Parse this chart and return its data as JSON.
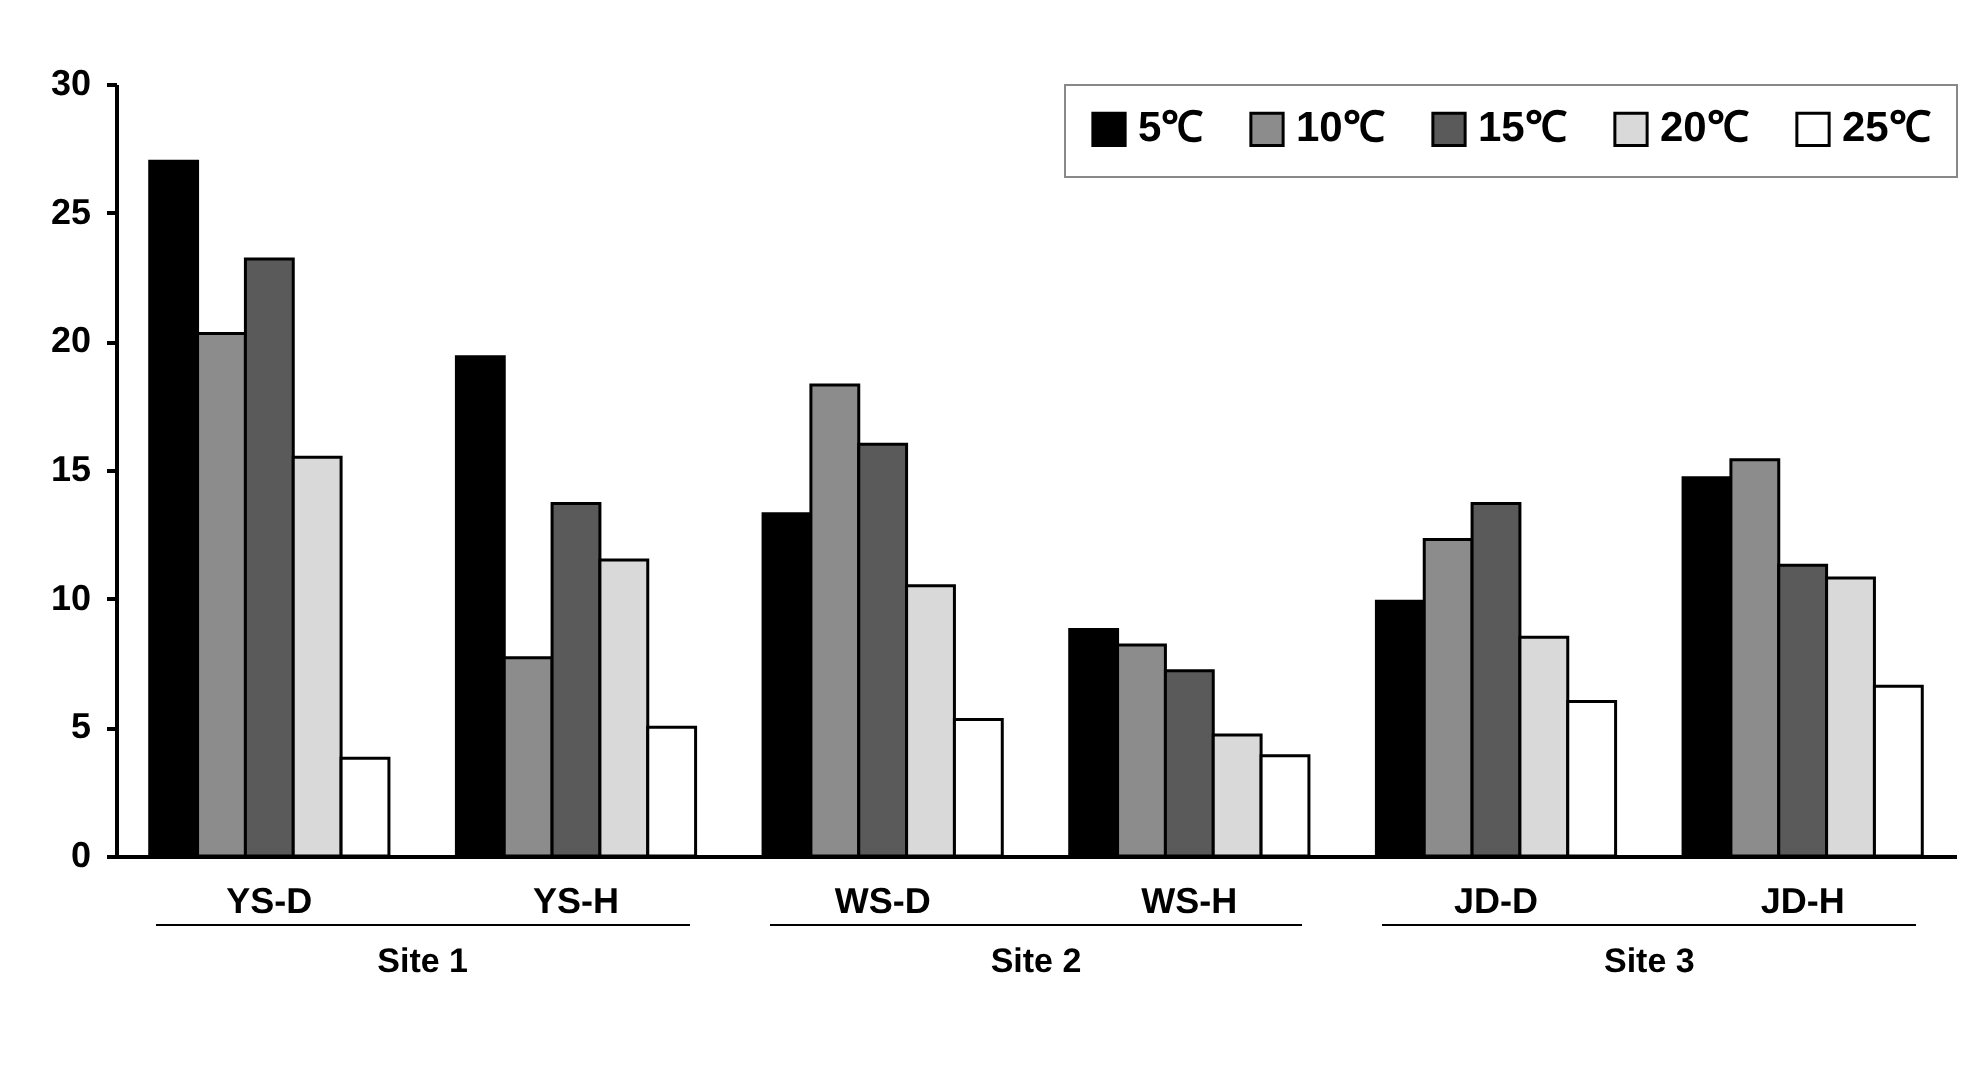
{
  "chart_data": {
    "type": "bar",
    "categories": [
      "YS-D",
      "YS-H",
      "WS-D",
      "WS-H",
      "JD-D",
      "JD-H"
    ],
    "series": [
      {
        "name": "5℃",
        "color": "#000000",
        "values": [
          27,
          19.4,
          13.3,
          8.8,
          9.9,
          14.7
        ]
      },
      {
        "name": "10℃",
        "color": "#8c8c8c",
        "values": [
          20.3,
          7.7,
          18.3,
          8.2,
          12.3,
          15.4
        ]
      },
      {
        "name": "15℃",
        "color": "#5a5a5a",
        "values": [
          23.2,
          13.7,
          16.0,
          7.2,
          13.7,
          11.3
        ]
      },
      {
        "name": "20℃",
        "color": "#d9d9d9",
        "values": [
          15.5,
          11.5,
          10.5,
          4.7,
          8.5,
          10.8
        ]
      },
      {
        "name": "25℃",
        "color": "#ffffff",
        "values": [
          3.8,
          5.0,
          5.3,
          3.9,
          6.0,
          6.6
        ]
      }
    ],
    "ylim": [
      0,
      30
    ],
    "yticks": [
      0,
      5,
      10,
      15,
      20,
      25,
      30
    ],
    "grid": false,
    "legend": "top right",
    "annotations": [
      "Site 1",
      "Site 2",
      "Site 3"
    ]
  }
}
